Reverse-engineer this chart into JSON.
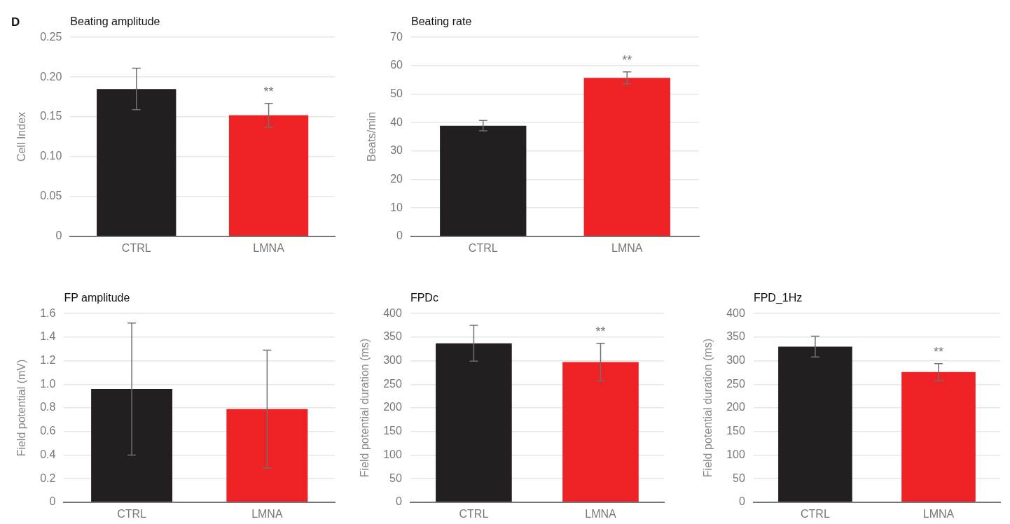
{
  "chart_data": [
    {
      "type": "bar",
      "title": "Beating amplitude",
      "ylabel": "Cell Index",
      "categories": [
        "CTRL",
        "LMNA"
      ],
      "values": [
        0.185,
        0.152
      ],
      "colors": [
        "#231f20",
        "#ee2124"
      ],
      "errors": [
        0.026,
        0.015
      ],
      "ylim": [
        0,
        0.25
      ],
      "yticks": [
        0,
        0.05,
        {
          "value": 0.1,
          "label": "0.10"
        },
        0.15,
        {
          "value": 0.2,
          "label": "0.20"
        },
        0.25
      ],
      "grid": "y",
      "annotations": [
        "D",
        {
          "text": "**",
          "x": "LMNA",
          "y": 0.152
        }
      ]
    },
    {
      "type": "bar",
      "title": "Beating rate",
      "ylabel": "Beats/min",
      "categories": [
        "CTRL",
        "LMNA"
      ],
      "values": [
        38.9,
        55.7
      ],
      "colors": [
        "#231f20",
        "#ee2124"
      ],
      "errors": [
        1.8,
        2.1
      ],
      "ylim": [
        0,
        70
      ],
      "yticks": [
        0,
        10,
        20,
        30,
        40,
        50,
        60,
        70
      ],
      "grid": "y",
      "annotations": [
        {
          "text": "**",
          "x": "LMNA",
          "y": 55.7
        }
      ]
    },
    {
      "type": "bar",
      "title": "FP amplitude",
      "ylabel": "Field potential (mV)",
      "categories": [
        "CTRL",
        "LMNA"
      ],
      "values": [
        0.96,
        0.79
      ],
      "colors": [
        "#231f20",
        "#ee2124"
      ],
      "errors": [
        0.56,
        0.5
      ],
      "ylim": [
        0,
        1.6
      ],
      "yticks": [
        0,
        0.2,
        0.4,
        0.6,
        0.8,
        {
          "value": 1,
          "label": "1.0"
        },
        1.2,
        1.4,
        1.6
      ],
      "grid": "y"
    },
    {
      "type": "bar",
      "title": "FPDc",
      "ylabel": "Field potential duration (ms)",
      "categories": [
        "CTRL",
        "LMNA"
      ],
      "values": [
        337,
        297
      ],
      "colors": [
        "#231f20",
        "#ee2124"
      ],
      "errors": [
        38,
        40
      ],
      "ylim": [
        0,
        400
      ],
      "yticks": [
        0,
        50,
        100,
        150,
        200,
        250,
        300,
        350,
        400
      ],
      "grid": "y",
      "annotations": [
        {
          "text": "**",
          "x": "LMNA",
          "y": 297
        }
      ]
    },
    {
      "type": "bar",
      "title": "FPD_1Hz",
      "ylabel": "Field potential duration (ms)",
      "categories": [
        "CTRL",
        "LMNA"
      ],
      "values": [
        330,
        276
      ],
      "colors": [
        "#231f20",
        "#ee2124"
      ],
      "errors": [
        22,
        18
      ],
      "ylim": [
        0,
        400
      ],
      "yticks": [
        0,
        50,
        100,
        150,
        200,
        250,
        300,
        350,
        400
      ],
      "grid": "y",
      "annotations": [
        {
          "text": "**",
          "x": "LMNA",
          "y": 276
        }
      ]
    }
  ]
}
